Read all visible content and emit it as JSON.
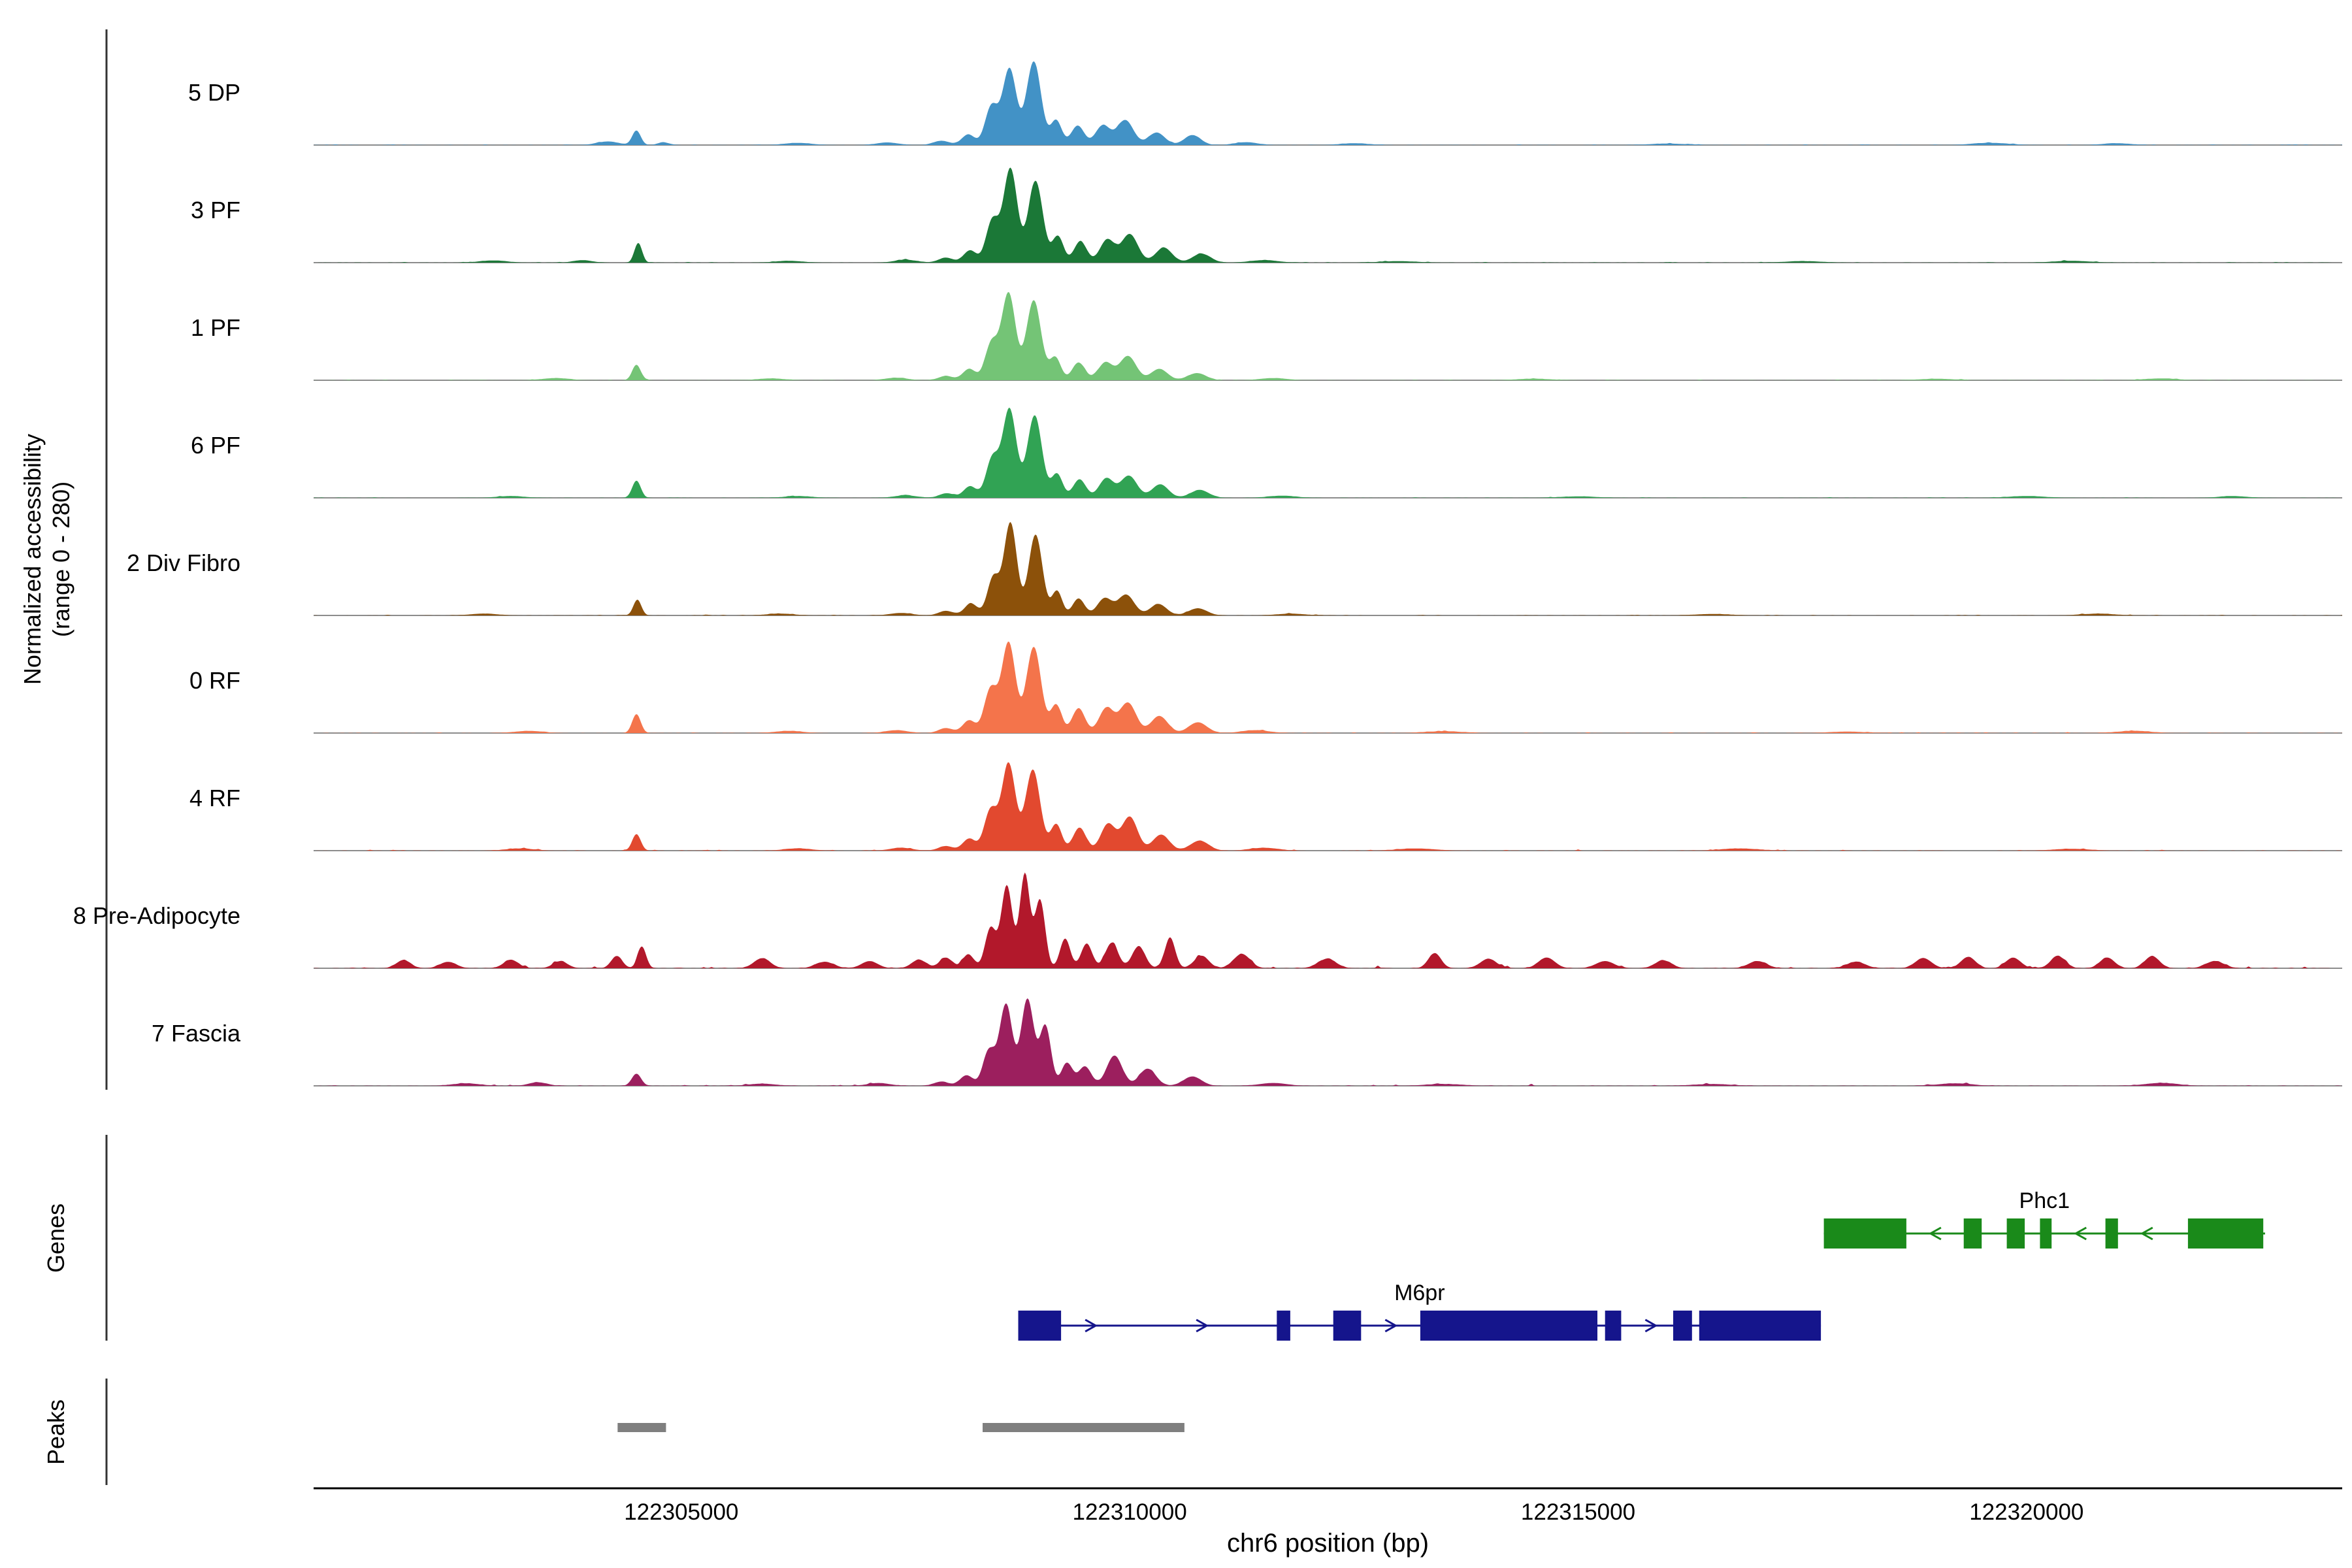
{
  "chart_data": {
    "type": "area",
    "description": "Genome browser coverage tracks of normalized chromatin accessibility across cell clusters, with gene models and called peaks",
    "x_axis": {
      "label": "chr6 position (bp)",
      "domain": [
        122300900,
        122323520
      ],
      "ticks": [
        {
          "value": 122305000,
          "label": "122305000"
        },
        {
          "value": 122310000,
          "label": "122310000"
        },
        {
          "value": 122315000,
          "label": "122315000"
        },
        {
          "value": 122320000,
          "label": "122320000"
        }
      ]
    },
    "y_axis": {
      "label_line1": "Normalized accessibility",
      "label_line2": "(range 0 - 280)",
      "range": [
        0,
        280
      ]
    },
    "genes_section_label": "Genes",
    "peaks_section_label": "Peaks",
    "tracks": [
      {
        "label": "5 DP",
        "color": "#4292c6",
        "noise": 5,
        "peaks": [
          [
            122304180,
            120,
            10
          ],
          [
            122304500,
            45,
            42
          ],
          [
            122304800,
            60,
            8
          ],
          [
            122306300,
            150,
            6
          ],
          [
            122307300,
            120,
            7
          ],
          [
            122307900,
            90,
            12
          ],
          [
            122308200,
            70,
            30
          ],
          [
            122308460,
            70,
            110
          ],
          [
            122308660,
            75,
            215
          ],
          [
            122308930,
            80,
            235
          ],
          [
            122309180,
            60,
            70
          ],
          [
            122309420,
            70,
            55
          ],
          [
            122309700,
            80,
            55
          ],
          [
            122309950,
            90,
            70
          ],
          [
            122310300,
            90,
            35
          ],
          [
            122310700,
            90,
            28
          ],
          [
            122311300,
            120,
            8
          ],
          [
            122312500,
            150,
            5
          ],
          [
            122316000,
            200,
            4
          ],
          [
            122319600,
            200,
            6
          ],
          [
            122321000,
            150,
            5
          ]
        ]
      },
      {
        "label": "3 PF",
        "color": "#1b7837",
        "noise": 5,
        "peaks": [
          [
            122302900,
            150,
            6
          ],
          [
            122303900,
            100,
            7
          ],
          [
            122304520,
            40,
            58
          ],
          [
            122306200,
            150,
            5
          ],
          [
            122307500,
            120,
            8
          ],
          [
            122307950,
            80,
            14
          ],
          [
            122308220,
            70,
            35
          ],
          [
            122308470,
            70,
            120
          ],
          [
            122308670,
            75,
            265
          ],
          [
            122308950,
            80,
            230
          ],
          [
            122309200,
            60,
            75
          ],
          [
            122309450,
            70,
            60
          ],
          [
            122309750,
            80,
            65
          ],
          [
            122310000,
            90,
            80
          ],
          [
            122310380,
            90,
            42
          ],
          [
            122310800,
            100,
            25
          ],
          [
            122311500,
            150,
            7
          ],
          [
            122313000,
            200,
            4
          ],
          [
            122317500,
            200,
            4
          ],
          [
            122320500,
            200,
            5
          ]
        ]
      },
      {
        "label": "1 PF",
        "color": "#74c476",
        "noise": 5,
        "peaks": [
          [
            122303600,
            150,
            6
          ],
          [
            122304500,
            45,
            45
          ],
          [
            122306000,
            150,
            5
          ],
          [
            122307400,
            120,
            7
          ],
          [
            122307950,
            80,
            12
          ],
          [
            122308210,
            70,
            32
          ],
          [
            122308460,
            70,
            105
          ],
          [
            122308650,
            75,
            245
          ],
          [
            122308930,
            80,
            225
          ],
          [
            122309170,
            60,
            65
          ],
          [
            122309430,
            70,
            50
          ],
          [
            122309730,
            80,
            50
          ],
          [
            122309980,
            90,
            68
          ],
          [
            122310330,
            90,
            32
          ],
          [
            122310750,
            100,
            20
          ],
          [
            122311600,
            150,
            6
          ],
          [
            122314500,
            200,
            4
          ],
          [
            122319000,
            200,
            4
          ],
          [
            122321500,
            180,
            5
          ]
        ]
      },
      {
        "label": "6 PF",
        "color": "#31a354",
        "noise": 5,
        "peaks": [
          [
            122303100,
            150,
            5
          ],
          [
            122304500,
            45,
            50
          ],
          [
            122306300,
            150,
            5
          ],
          [
            122307500,
            120,
            7
          ],
          [
            122307960,
            80,
            13
          ],
          [
            122308220,
            70,
            33
          ],
          [
            122308470,
            70,
            112
          ],
          [
            122308660,
            75,
            250
          ],
          [
            122308940,
            80,
            232
          ],
          [
            122309190,
            60,
            68
          ],
          [
            122309440,
            70,
            52
          ],
          [
            122309740,
            80,
            55
          ],
          [
            122309990,
            90,
            62
          ],
          [
            122310340,
            90,
            38
          ],
          [
            122310780,
            100,
            22
          ],
          [
            122311700,
            150,
            6
          ],
          [
            122315000,
            200,
            4
          ],
          [
            122320000,
            200,
            5
          ],
          [
            122322300,
            150,
            5
          ]
        ]
      },
      {
        "label": "2 Div Fibro",
        "color": "#8c510a",
        "noise": 5,
        "peaks": [
          [
            122302800,
            150,
            5
          ],
          [
            122304510,
            42,
            46
          ],
          [
            122306100,
            150,
            5
          ],
          [
            122307450,
            120,
            7
          ],
          [
            122307950,
            80,
            13
          ],
          [
            122308230,
            70,
            34
          ],
          [
            122308480,
            65,
            108
          ],
          [
            122308670,
            70,
            262
          ],
          [
            122308950,
            75,
            228
          ],
          [
            122309190,
            55,
            70
          ],
          [
            122309430,
            65,
            48
          ],
          [
            122309720,
            80,
            48
          ],
          [
            122309960,
            90,
            58
          ],
          [
            122310320,
            90,
            32
          ],
          [
            122310760,
            100,
            20
          ],
          [
            122311800,
            150,
            5
          ],
          [
            122316500,
            200,
            4
          ],
          [
            122320800,
            180,
            5
          ]
        ]
      },
      {
        "label": "0 RF",
        "color": "#f4744b",
        "noise": 6,
        "peaks": [
          [
            122303300,
            150,
            6
          ],
          [
            122304500,
            45,
            55
          ],
          [
            122306200,
            150,
            6
          ],
          [
            122307400,
            120,
            8
          ],
          [
            122307950,
            80,
            14
          ],
          [
            122308210,
            70,
            36
          ],
          [
            122308450,
            70,
            125
          ],
          [
            122308650,
            75,
            255
          ],
          [
            122308930,
            80,
            242
          ],
          [
            122309180,
            60,
            80
          ],
          [
            122309430,
            70,
            70
          ],
          [
            122309740,
            80,
            70
          ],
          [
            122309980,
            90,
            85
          ],
          [
            122310330,
            90,
            48
          ],
          [
            122310760,
            100,
            30
          ],
          [
            122311400,
            150,
            8
          ],
          [
            122313500,
            200,
            5
          ],
          [
            122318000,
            200,
            4
          ],
          [
            122321200,
            180,
            6
          ]
        ]
      },
      {
        "label": "4 RF",
        "color": "#e2492f",
        "noise": 6,
        "peaks": [
          [
            122303200,
            150,
            6
          ],
          [
            122304500,
            45,
            48
          ],
          [
            122306300,
            150,
            6
          ],
          [
            122307450,
            120,
            8
          ],
          [
            122307950,
            80,
            13
          ],
          [
            122308210,
            70,
            34
          ],
          [
            122308450,
            70,
            115
          ],
          [
            122308650,
            75,
            245
          ],
          [
            122308920,
            80,
            228
          ],
          [
            122309180,
            60,
            75
          ],
          [
            122309440,
            70,
            65
          ],
          [
            122309760,
            80,
            75
          ],
          [
            122310000,
            85,
            95
          ],
          [
            122310350,
            90,
            45
          ],
          [
            122310780,
            100,
            28
          ],
          [
            122311500,
            150,
            8
          ],
          [
            122313200,
            200,
            6
          ],
          [
            122316800,
            200,
            6
          ],
          [
            122320500,
            200,
            5
          ]
        ]
      },
      {
        "label": "8 Pre-Adipocyte",
        "color": "#b2182b",
        "noise": 14,
        "peaks": [
          [
            122301900,
            80,
            22
          ],
          [
            122302400,
            90,
            18
          ],
          [
            122303100,
            80,
            24
          ],
          [
            122303650,
            80,
            20
          ],
          [
            122304280,
            60,
            35
          ],
          [
            122304560,
            45,
            62
          ],
          [
            122305900,
            90,
            28
          ],
          [
            122306600,
            100,
            18
          ],
          [
            122307100,
            90,
            20
          ],
          [
            122307650,
            80,
            24
          ],
          [
            122307950,
            70,
            30
          ],
          [
            122308200,
            60,
            40
          ],
          [
            122308450,
            60,
            115
          ],
          [
            122308630,
            60,
            235
          ],
          [
            122308830,
            55,
            268
          ],
          [
            122309000,
            55,
            195
          ],
          [
            122309280,
            55,
            85
          ],
          [
            122309520,
            60,
            70
          ],
          [
            122309800,
            70,
            72
          ],
          [
            122310100,
            70,
            62
          ],
          [
            122310450,
            55,
            88
          ],
          [
            122310800,
            80,
            35
          ],
          [
            122311250,
            90,
            40
          ],
          [
            122312200,
            100,
            26
          ],
          [
            122313400,
            70,
            42
          ],
          [
            122314000,
            90,
            26
          ],
          [
            122314650,
            90,
            30
          ],
          [
            122315300,
            100,
            20
          ],
          [
            122315950,
            90,
            22
          ],
          [
            122317000,
            100,
            20
          ],
          [
            122318100,
            100,
            18
          ],
          [
            122318850,
            90,
            28
          ],
          [
            122319350,
            80,
            32
          ],
          [
            122319850,
            80,
            30
          ],
          [
            122320350,
            80,
            34
          ],
          [
            122320900,
            80,
            30
          ],
          [
            122321400,
            80,
            34
          ],
          [
            122322100,
            100,
            20
          ]
        ]
      },
      {
        "label": "7 Fascia",
        "color": "#9c1f5e",
        "noise": 8,
        "peaks": [
          [
            122302600,
            150,
            7
          ],
          [
            122303400,
            100,
            10
          ],
          [
            122304500,
            50,
            35
          ],
          [
            122305900,
            150,
            6
          ],
          [
            122307200,
            120,
            8
          ],
          [
            122307900,
            80,
            12
          ],
          [
            122308180,
            70,
            30
          ],
          [
            122308430,
            65,
            100
          ],
          [
            122308620,
            70,
            230
          ],
          [
            122308860,
            70,
            245
          ],
          [
            122309060,
            60,
            170
          ],
          [
            122309300,
            60,
            65
          ],
          [
            122309500,
            70,
            55
          ],
          [
            122309830,
            85,
            85
          ],
          [
            122310200,
            90,
            48
          ],
          [
            122310700,
            100,
            26
          ],
          [
            122311600,
            150,
            8
          ],
          [
            122313500,
            200,
            5
          ],
          [
            122316500,
            200,
            5
          ],
          [
            122319200,
            180,
            7
          ],
          [
            122321500,
            180,
            8
          ]
        ]
      }
    ],
    "genes": [
      {
        "name": "Phc1",
        "color": "#1a8a1a",
        "strand": "-",
        "row": 0,
        "start": 122317740,
        "end": 122322660,
        "exons": [
          [
            122317740,
            122318660
          ],
          [
            122319300,
            122319500
          ],
          [
            122319780,
            122319980
          ],
          [
            122320150,
            122320280
          ],
          [
            122320880,
            122321020
          ],
          [
            122321800,
            122322640
          ]
        ]
      },
      {
        "name": "M6pr",
        "color": "#15158c",
        "strand": "+",
        "row": 1,
        "start": 122308757,
        "end": 122317707,
        "exons": [
          [
            122308757,
            122309235
          ],
          [
            122311640,
            122311790
          ],
          [
            122312270,
            122312580
          ],
          [
            122313240,
            122315215
          ],
          [
            122315300,
            122315480
          ],
          [
            122316060,
            122316270
          ],
          [
            122316350,
            122317707
          ]
        ]
      }
    ],
    "peaks_track": [
      [
        122304290,
        122304830
      ],
      [
        122308360,
        122310610
      ]
    ]
  }
}
